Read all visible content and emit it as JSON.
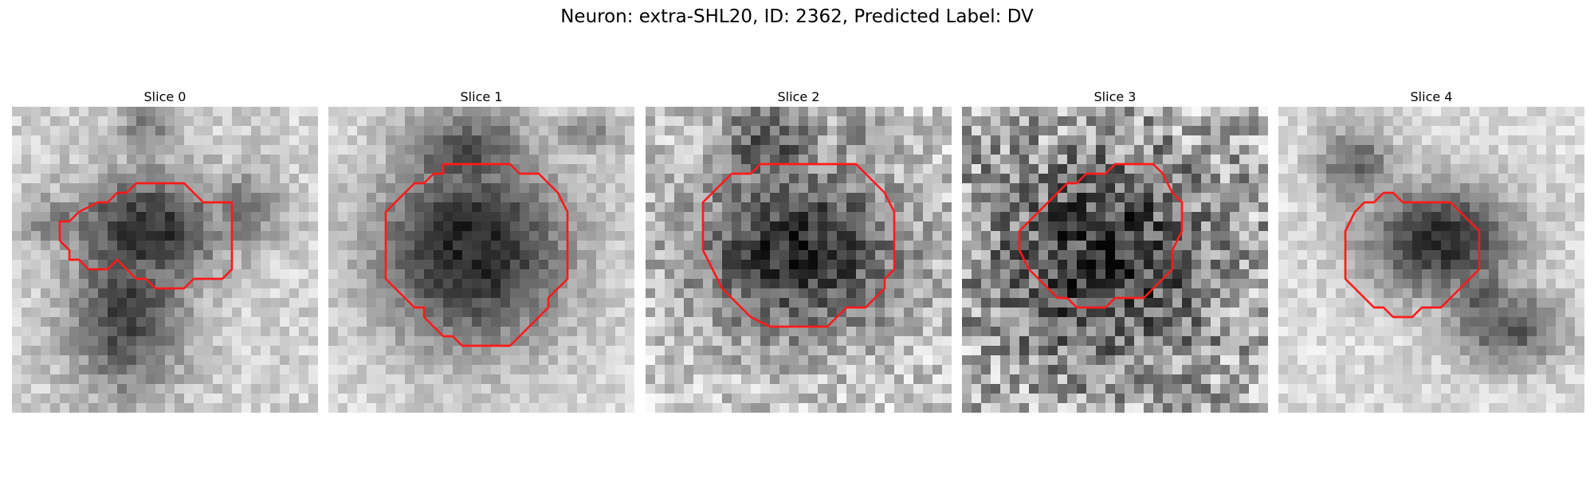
{
  "figure": {
    "title": "Neuron: extra-SHL20, ID: 2362, Predicted Label: DV"
  },
  "panels": [
    {
      "title": "Slice 0"
    },
    {
      "title": "Slice 1"
    },
    {
      "title": "Slice 2"
    },
    {
      "title": "Slice 3"
    },
    {
      "title": "Slice 4"
    }
  ],
  "colors": {
    "contour": "#ff1a1a"
  }
}
